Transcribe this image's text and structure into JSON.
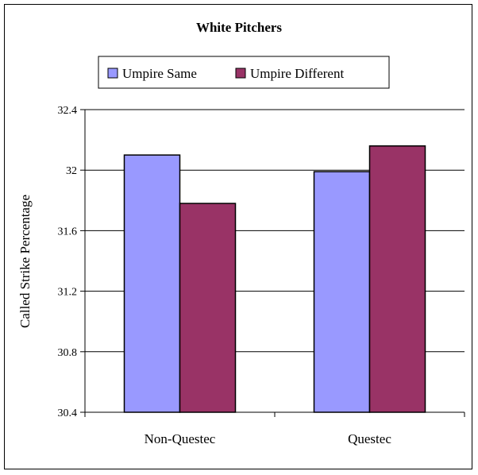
{
  "chart_data": {
    "type": "bar",
    "title": "White Pitchers",
    "xlabel": "",
    "ylabel": "Called Strike Percentage",
    "categories": [
      "Non-Questec",
      "Questec"
    ],
    "series": [
      {
        "name": "Umpire Same",
        "values": [
          32.1,
          31.99
        ],
        "color": "#9999ff"
      },
      {
        "name": "Umpire Different",
        "values": [
          31.78,
          32.16
        ],
        "color": "#993366"
      }
    ],
    "ylim": [
      30.4,
      32.4
    ],
    "yticks": [
      "30.4",
      "30.8",
      "31.2",
      "31.6",
      "32",
      "32.4"
    ],
    "grid": true,
    "legend_position": "top"
  }
}
